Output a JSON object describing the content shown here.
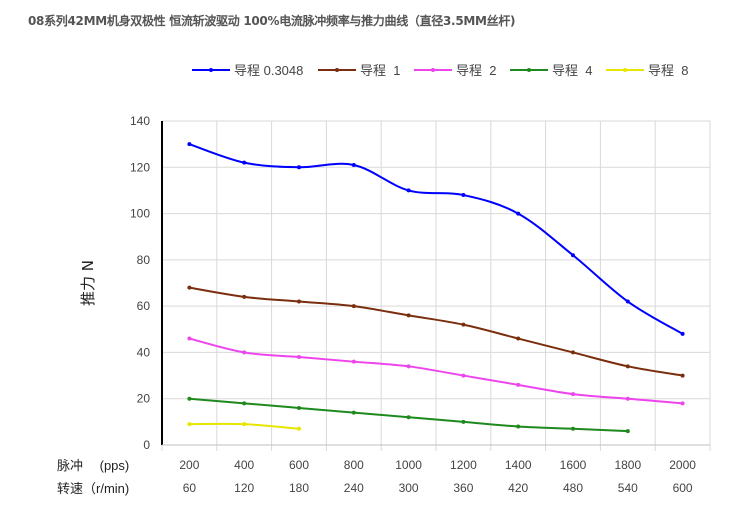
{
  "chart_data": {
    "type": "line",
    "title": "08系列42MM机身双极性 恒流斩波驱动 100%电流脉冲频率与推力曲线（直径3.5MM丝杆)",
    "ylabel": "推力 N",
    "xlabel_rows": [
      {
        "label": "脉冲　 (pps)",
        "ticks": [
          "200",
          "400",
          "600",
          "800",
          "1000",
          "1200",
          "1400",
          "1600",
          "1800",
          "2000"
        ]
      },
      {
        "label": "转速（r/min)",
        "ticks": [
          "60",
          "120",
          "180",
          "240",
          "300",
          "360",
          "420",
          "480",
          "540",
          "600"
        ]
      }
    ],
    "ylim": [
      0,
      140
    ],
    "yticks": [
      "0",
      "20",
      "40",
      "60",
      "80",
      "100",
      "120",
      "140"
    ],
    "grid": true,
    "legend_position": "top",
    "series": [
      {
        "name": "导程 0.3048",
        "color": "#0000ff",
        "values": [
          130,
          122,
          120,
          121,
          110,
          108,
          100,
          82,
          62,
          48
        ]
      },
      {
        "name": "导程  1",
        "color": "#7b2e0e",
        "values": [
          68,
          64,
          62,
          60,
          56,
          52,
          46,
          40,
          34,
          30
        ]
      },
      {
        "name": "导程  2",
        "color": "#ee44ee",
        "values": [
          46,
          40,
          38,
          36,
          34,
          30,
          26,
          22,
          20,
          18
        ]
      },
      {
        "name": "导程  4",
        "color": "#1e8a1e",
        "values": [
          20,
          18,
          16,
          14,
          12,
          10,
          8,
          7,
          6
        ]
      },
      {
        "name": "导程  8",
        "color": "#e6e600",
        "values": [
          9,
          9,
          7
        ]
      }
    ]
  }
}
